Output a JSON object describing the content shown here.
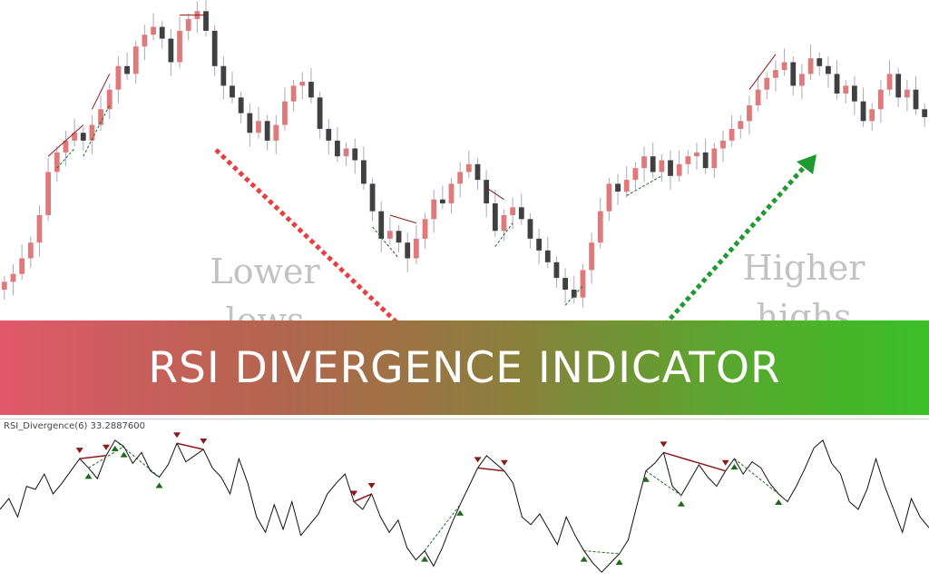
{
  "banner": {
    "title": "RSI DIVERGENCE INDICATOR"
  },
  "annotations": {
    "lower": [
      "Lower",
      "lows"
    ],
    "higher": [
      "Higher",
      "highs"
    ]
  },
  "rsi_panel": {
    "label": "RSI_Divergence(6) 33.2887600"
  },
  "colors": {
    "bull_candle": "#e07a7a",
    "bear_candle": "#404040",
    "wick": "#a8a8c8",
    "bear_divergence": "#8b1a1a",
    "bull_divergence": "#1a6b1a",
    "lower_lows_arrow": "#e84040",
    "higher_highs_arrow": "#1e9a2e",
    "banner_start": "#e0586a",
    "banner_end": "#3bbf26",
    "rsi_line": "#111111"
  },
  "chart_data": [
    {
      "type": "candlestick",
      "title": "",
      "xlabel": "",
      "ylabel": "",
      "price_range": [
        0,
        100
      ],
      "grid": false,
      "close_path": [
        30,
        32,
        36,
        40,
        47,
        58,
        63,
        66,
        68,
        66,
        70,
        74,
        79,
        85,
        83,
        90,
        93,
        95,
        92,
        86,
        94,
        97,
        99,
        94,
        85,
        80,
        77,
        73,
        68,
        71,
        66,
        70,
        76,
        80,
        81,
        77,
        69,
        66,
        62,
        64,
        61,
        55,
        48,
        41,
        43,
        40,
        36,
        41,
        46,
        51,
        50,
        55,
        58,
        60,
        56,
        50,
        43,
        47,
        49,
        46,
        41,
        38,
        35,
        31,
        28,
        26,
        33,
        40,
        48,
        55,
        53,
        56,
        59,
        62,
        58,
        61,
        57,
        60,
        62,
        63,
        59,
        64,
        66,
        69,
        71,
        75,
        79,
        82,
        84,
        86,
        80,
        83,
        87,
        85,
        83,
        78,
        80,
        76,
        71,
        74,
        79,
        83,
        77,
        79,
        74,
        72
      ],
      "divergence_marks": {
        "bearish_price": [
          [
            5,
            9
          ],
          [
            10,
            12
          ],
          [
            20,
            23
          ],
          [
            44,
            47
          ],
          [
            55,
            57
          ],
          [
            85,
            88
          ]
        ],
        "bullish_price": [
          [
            6,
            8
          ],
          [
            9,
            12
          ],
          [
            42,
            45
          ],
          [
            56,
            58
          ],
          [
            71,
            75
          ],
          [
            64,
            66
          ]
        ]
      },
      "annotations": [
        "Lower lows",
        "Higher highs"
      ]
    },
    {
      "type": "line",
      "title": "",
      "series": [
        {
          "name": "RSI_Divergence(6) 33.2887600",
          "values": [
            45,
            52,
            40,
            60,
            58,
            68,
            55,
            62,
            70,
            78,
            72,
            65,
            80,
            90,
            86,
            75,
            82,
            70,
            66,
            74,
            88,
            76,
            80,
            84,
            72,
            66,
            55,
            78,
            62,
            40,
            30,
            48,
            32,
            50,
            28,
            35,
            42,
            55,
            62,
            68,
            50,
            45,
            55,
            40,
            30,
            38,
            20,
            12,
            18,
            8,
            20,
            35,
            48,
            60,
            72,
            80,
            75,
            70,
            62,
            40,
            35,
            42,
            32,
            22,
            40,
            28,
            18,
            10,
            4,
            10,
            16,
            25,
            48,
            70,
            75,
            82,
            60,
            54,
            64,
            74,
            66,
            60,
            70,
            78,
            68,
            76,
            72,
            62,
            55,
            50,
            60,
            72,
            85,
            90,
            75,
            68,
            50,
            45,
            58,
            78,
            60,
            45,
            30,
            52,
            40,
            33
          ]
        }
      ],
      "ylim": [
        0,
        100
      ],
      "divergence_marks": {
        "bearish": [
          [
            9,
            12
          ],
          [
            20,
            23
          ],
          [
            40,
            42
          ],
          [
            54,
            57
          ],
          [
            75,
            82
          ]
        ],
        "bullish": [
          [
            10,
            14
          ],
          [
            13,
            18
          ],
          [
            48,
            52
          ],
          [
            66,
            70
          ],
          [
            73,
            77
          ],
          [
            83,
            88
          ]
        ]
      }
    }
  ]
}
